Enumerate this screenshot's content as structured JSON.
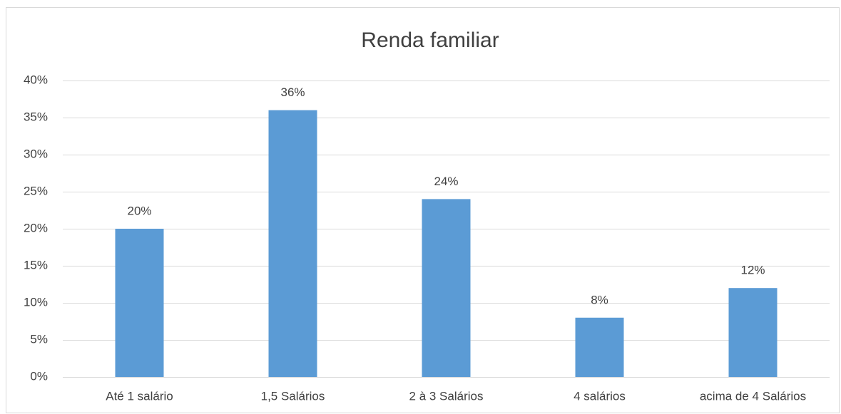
{
  "chart_data": {
    "type": "bar",
    "title": "Renda familiar",
    "categories": [
      "Até 1 salário",
      "1,5 Salários",
      "2 à 3 Salários",
      "4 salários",
      "acima de 4 Salários"
    ],
    "values": [
      20,
      36,
      24,
      8,
      12
    ],
    "value_labels": [
      "20%",
      "36%",
      "24%",
      "8%",
      "12%"
    ],
    "color": "#5b9bd5",
    "ylim": [
      0,
      40
    ],
    "yticks": [
      {
        "value": 0,
        "label": "0%"
      },
      {
        "value": 5,
        "label": "5%"
      },
      {
        "value": 10,
        "label": "10%"
      },
      {
        "value": 15,
        "label": "15%"
      },
      {
        "value": 20,
        "label": "20%"
      },
      {
        "value": 25,
        "label": "25%"
      },
      {
        "value": 30,
        "label": "30%"
      },
      {
        "value": 35,
        "label": "35%"
      },
      {
        "value": 40,
        "label": "40%"
      }
    ],
    "grid": true
  }
}
